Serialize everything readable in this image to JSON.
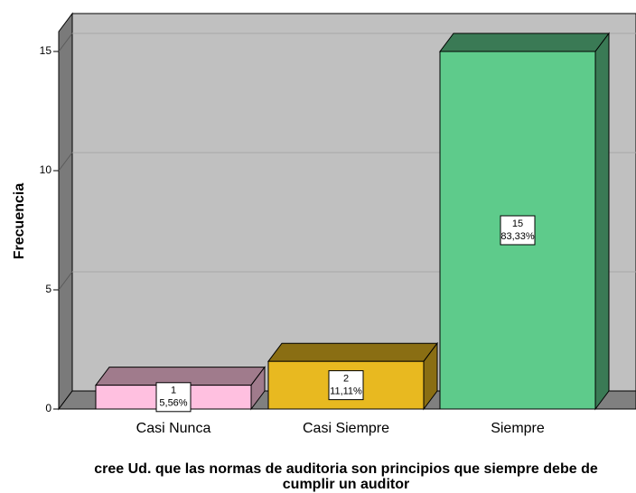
{
  "chart_data": {
    "type": "bar3d",
    "y_label": "Frecuencia",
    "x_label_lines": [
      "cree Ud. que las normas de auditoria son principios que siempre debe de",
      "cumplir un auditor"
    ],
    "categories": [
      "Casi Nunca",
      "Casi Siempre",
      "Siempre"
    ],
    "values": [
      1,
      2,
      15
    ],
    "percentages": [
      5.56,
      11.11,
      83.33
    ],
    "percentage_labels": [
      "5,56%",
      "11,11%",
      "83,33%"
    ],
    "colors": [
      "#ffc0e0",
      "#e8b920",
      "#5ecb8b"
    ],
    "side_colors": [
      "#a07b8c",
      "#8a6e13",
      "#3a7a55"
    ],
    "ylim": [
      0,
      15.8
    ],
    "yticks": [
      0,
      5,
      10,
      15
    ],
    "grid": true
  }
}
